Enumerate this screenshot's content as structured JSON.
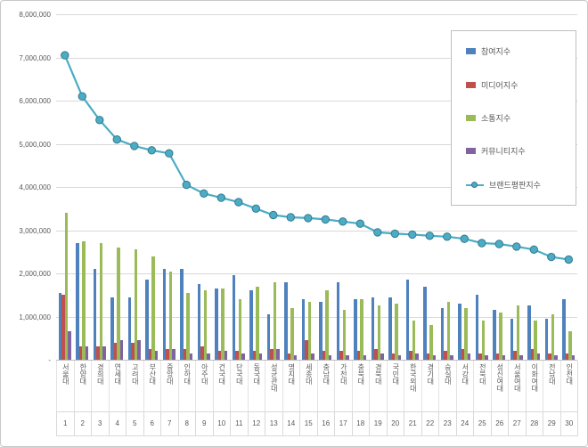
{
  "chart_data": {
    "type": "bar+line",
    "title": "",
    "categories": [
      "서울대",
      "한양대",
      "경희대",
      "연세대",
      "고려대",
      "부산대",
      "중앙대",
      "인하대",
      "아주대",
      "건국대",
      "단국대",
      "동국대",
      "성균관대",
      "명지대",
      "세종대",
      "충남대",
      "가천대",
      "충북대",
      "경북대",
      "국민대",
      "한국외대",
      "경기대",
      "숭실대",
      "서강대",
      "전북대",
      "성신여대",
      "서울여대",
      "이화여대",
      "전남대",
      "인천대"
    ],
    "category_numbers": [
      "1",
      "2",
      "3",
      "4",
      "5",
      "6",
      "7",
      "8",
      "9",
      "10",
      "11",
      "12",
      "13",
      "14",
      "15",
      "16",
      "17",
      "18",
      "19",
      "20",
      "21",
      "22",
      "23",
      "24",
      "25",
      "26",
      "27",
      "28",
      "29",
      "30"
    ],
    "ylim": [
      0,
      8000000
    ],
    "grid": true,
    "legend_position": "right-top",
    "y_ticks": [
      {
        "label": "8,000,000",
        "value": 8000000
      },
      {
        "label": "7,000,000",
        "value": 7000000
      },
      {
        "label": "6,000,000",
        "value": 6000000
      },
      {
        "label": "5,000,000",
        "value": 5000000
      },
      {
        "label": "4,000,000",
        "value": 4000000
      },
      {
        "label": "3,000,000",
        "value": 3000000
      },
      {
        "label": "2,000,000",
        "value": 2000000
      },
      {
        "label": "1,000,000",
        "value": 1000000
      },
      {
        "label": "-",
        "value": 0
      }
    ],
    "series": [
      {
        "name": "참여지수",
        "key": "participation-index",
        "type": "bar",
        "color": "#4F81BD",
        "values": [
          1550000,
          2700000,
          2100000,
          1450000,
          1450000,
          1850000,
          2100000,
          2100000,
          1750000,
          1650000,
          1950000,
          1600000,
          1050000,
          1800000,
          1400000,
          1350000,
          1800000,
          1400000,
          1450000,
          1450000,
          1850000,
          1700000,
          1200000,
          1300000,
          1500000,
          1150000,
          950000,
          1250000,
          950000,
          1400000
        ]
      },
      {
        "name": "미디어지수",
        "key": "media-index",
        "type": "bar",
        "color": "#C0504D",
        "values": [
          1500000,
          300000,
          300000,
          400000,
          400000,
          250000,
          250000,
          250000,
          300000,
          200000,
          200000,
          200000,
          250000,
          150000,
          450000,
          200000,
          200000,
          200000,
          250000,
          150000,
          200000,
          150000,
          200000,
          250000,
          150000,
          150000,
          200000,
          250000,
          150000,
          150000
        ]
      },
      {
        "name": "소통지수",
        "key": "communication-index",
        "type": "bar",
        "color": "#9BBB59",
        "values": [
          3400000,
          2750000,
          2700000,
          2600000,
          2550000,
          2400000,
          2050000,
          1550000,
          1600000,
          1650000,
          1400000,
          1700000,
          1800000,
          1200000,
          1350000,
          1600000,
          1150000,
          1400000,
          1250000,
          1300000,
          900000,
          800000,
          1350000,
          1200000,
          900000,
          1100000,
          1250000,
          900000,
          1050000,
          650000
        ]
      },
      {
        "name": "커뮤니티지수",
        "key": "community-index",
        "type": "bar",
        "color": "#8064A2",
        "values": [
          650000,
          300000,
          300000,
          450000,
          450000,
          200000,
          250000,
          150000,
          150000,
          200000,
          150000,
          150000,
          250000,
          100000,
          150000,
          100000,
          100000,
          100000,
          150000,
          100000,
          150000,
          100000,
          100000,
          150000,
          100000,
          100000,
          100000,
          150000,
          100000,
          100000
        ]
      },
      {
        "name": "브랜드평판지수",
        "key": "brand-reputation-index",
        "type": "line",
        "color": "#4BACC6",
        "marker_stroke": "#35798C",
        "values": [
          7050000,
          6100000,
          5550000,
          5100000,
          4950000,
          4850000,
          4780000,
          4050000,
          3850000,
          3750000,
          3650000,
          3500000,
          3350000,
          3300000,
          3280000,
          3250000,
          3200000,
          3150000,
          2950000,
          2920000,
          2900000,
          2870000,
          2850000,
          2800000,
          2700000,
          2680000,
          2620000,
          2550000,
          2380000,
          2320000
        ]
      }
    ],
    "colors": {
      "gridline": "#d9d9d9",
      "axis_line": "#bfbfbf",
      "tick_text": "#595959"
    }
  }
}
